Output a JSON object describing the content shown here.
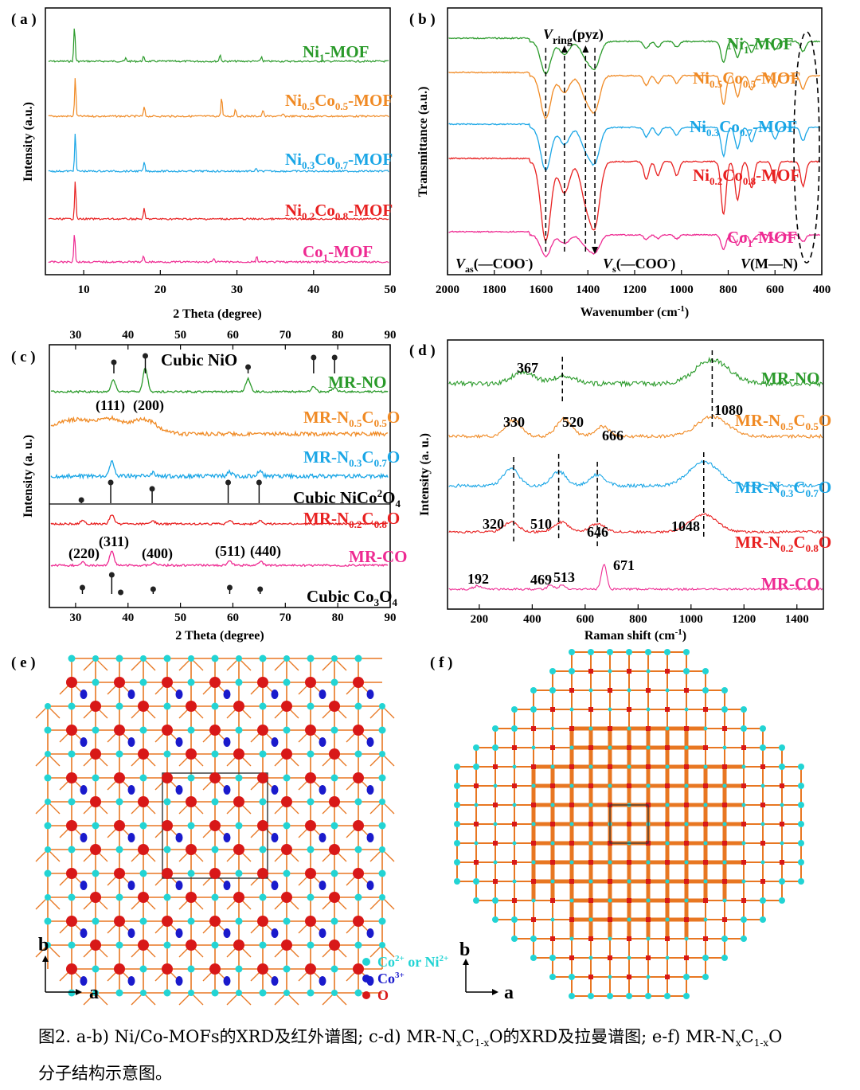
{
  "figure": {
    "panels": {
      "a": {
        "label": "( a )",
        "xlabel": "2 Theta (degree)",
        "ylabel": "Intensity (a.u.)",
        "xticks": [
          "10",
          "20",
          "30",
          "40",
          "50"
        ],
        "series": [
          {
            "name": "Ni1-MOF",
            "base": "Ni",
            "sub": "1",
            "tail": "-MOF",
            "color": "#2a9a2a"
          },
          {
            "name": "Ni0.5Co0.5-MOF",
            "base": "Ni",
            "sub": "0.5",
            "mid": "Co",
            "sub2": "0.5",
            "tail": "-MOF",
            "color": "#f08a24"
          },
          {
            "name": "Ni0.3Co0.7-MOF",
            "base": "Ni",
            "sub": "0.3",
            "mid": "Co",
            "sub2": "0.7",
            "tail": "-MOF",
            "color": "#1aa6e6"
          },
          {
            "name": "Ni0.2Co0.8-MOF",
            "base": "Ni",
            "sub": "0.2",
            "mid": "Co",
            "sub2": "0.8",
            "tail": "-MOF",
            "color": "#e82020"
          },
          {
            "name": "Co1-MOF",
            "base": "Co",
            "sub": "1",
            "tail": "-MOF",
            "color": "#ee2a92"
          }
        ]
      },
      "b": {
        "label": "( b )",
        "xlabel": "Wavenumber (cm",
        "xlabel_sup": "-1",
        "xlabel_end": ")",
        "ylabel": "Transmittance (a.u.)",
        "xticks": [
          "2000",
          "1800",
          "1600",
          "1400",
          "1200",
          "1000",
          "800",
          "600",
          "400"
        ],
        "ann_ring": "V",
        "ann_ring_sub": "ring",
        "ann_ring_end": "(pyz)",
        "ann_as": "V",
        "ann_as_sub": "as",
        "ann_as_end": "(—COO",
        "ann_s": "V",
        "ann_s_sub": "s",
        "ann_s_end": "(—COO",
        "ann_mn": "V",
        "ann_mn_end": "(M—N)",
        "minus": "-",
        "close": ")",
        "series_names": [
          "Ni1-MOF",
          "Ni0.5Co0.5-MOF",
          "Ni0.3Co0.7-MOF",
          "Ni0.2Co0.8-MOF",
          "Co1-MOF"
        ]
      },
      "c": {
        "label": "( c )",
        "xlabel": "2 Theta (degree)",
        "ylabel": "Intensity (a. u.)",
        "xticks": [
          "30",
          "40",
          "50",
          "60",
          "70",
          "80",
          "90"
        ],
        "ref_nio": "Cubic NiO",
        "ref_nico": "Cubic NiCo",
        "ref_nico_sub": "2",
        "ref_nico_end": "O",
        "ref_nico_sub2": "4",
        "ref_co": "Cubic Co",
        "ref_co_sub": "3",
        "ref_co_end": "O",
        "ref_co_sub2": "4",
        "hkl_top": [
          "(111)",
          "(200)"
        ],
        "hkl_bottom": [
          "(220)",
          "(311)",
          "(400)",
          "(511)",
          "(440)"
        ],
        "series": [
          {
            "name": "MR-NO",
            "color": "#2a9a2a"
          },
          {
            "name": "MR-N0.5C0.5O",
            "base": "MR-N",
            "sub": "0.5",
            "mid": "C",
            "sub2": "0.5",
            "tail": "O",
            "color": "#f08a24"
          },
          {
            "name": "MR-N0.3C0.7O",
            "base": "MR-N",
            "sub": "0.3",
            "mid": "C",
            "sub2": "0.7",
            "tail": "O",
            "color": "#1aa6e6"
          },
          {
            "name": "MR-N0.2C0.8O",
            "base": "MR-N",
            "sub": "0.2",
            "mid": "C",
            "sub2": "0.8",
            "tail": "O",
            "color": "#e82020"
          },
          {
            "name": "MR-CO",
            "color": "#ee2a92"
          }
        ]
      },
      "d": {
        "label": "( d )",
        "xlabel": "Raman shift (cm",
        "xlabel_sup": "-1",
        "xlabel_end": ")",
        "ylabel": "Intensity (a. u.)",
        "xticks": [
          "200",
          "400",
          "600",
          "800",
          "1000",
          "1200",
          "1400"
        ],
        "peaks": {
          "no": [
            "367",
            "1080"
          ],
          "n05": [
            "330",
            "520",
            "666"
          ],
          "n02": [
            "320",
            "510",
            "646",
            "1048"
          ],
          "co": [
            "192",
            "469",
            "513",
            "671"
          ]
        },
        "series_names": [
          "MR-NO",
          "MR-N0.5C0.5O",
          "MR-N0.3C0.7O",
          "MR-N0.2C0.8O",
          "MR-CO"
        ]
      },
      "e": {
        "label": "( e )",
        "axis_b": "b",
        "axis_a": "a",
        "legend": [
          {
            "text": "Co",
            "sup": "2+",
            "end": " or Ni",
            "sup2": "2+",
            "color": "#22d4d4"
          },
          {
            "text": "Co",
            "sup": "3+",
            "color": "#1a1acc"
          },
          {
            "text": "O",
            "color": "#d81818"
          }
        ]
      },
      "f": {
        "label": "( f )",
        "axis_b": "b",
        "axis_a": "a"
      }
    },
    "caption": {
      "line1_a": "图2. a-b) Ni/Co-MOFs的XRD及红外谱图; c-d) MR-N",
      "x1": "x",
      "c1": "C",
      "s1": "1-x",
      "line1_b": "O的XRD及拉曼谱图; e-f) MR-N",
      "x2": "x",
      "c2": "C",
      "s2": "1-x",
      "o2": "O",
      "line2": "分子结构示意图。"
    },
    "colors": {
      "green": "#2a9a2a",
      "orange": "#f08a24",
      "blue": "#1aa6e6",
      "red": "#e82020",
      "pink": "#ee2a92",
      "bond": "#e87722",
      "oxygen": "#d81818",
      "cyan": "#22d4d4",
      "co3": "#1a1acc"
    }
  }
}
